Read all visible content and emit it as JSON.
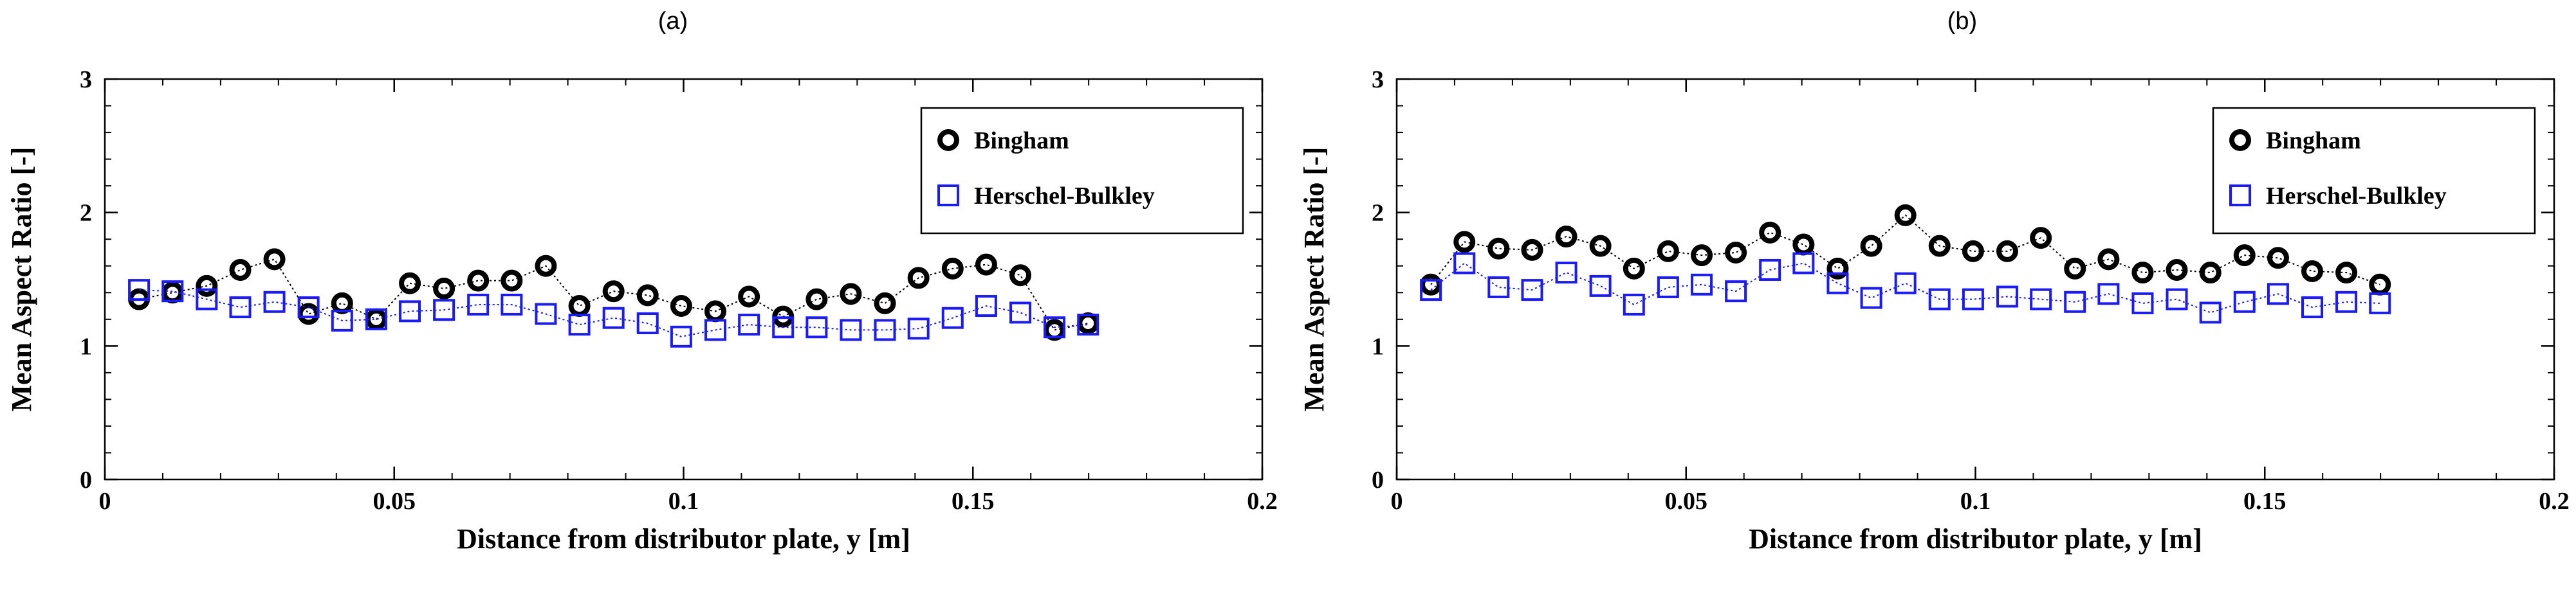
{
  "chart_data": [
    {
      "panel_label": "(a)",
      "type": "scatter",
      "xlabel": "Distance from distributor plate, y [m]",
      "ylabel": "Mean Aspect Ratio [-]",
      "xlim": [
        0,
        0.2
      ],
      "ylim": [
        0,
        3
      ],
      "x_ticks": [
        "0",
        "0.05",
        "0.1",
        "0.15",
        "0.2"
      ],
      "y_ticks": [
        "0",
        "1",
        "2",
        "3"
      ],
      "legend_position": "top-right",
      "x": [
        0.0059,
        0.0117,
        0.0176,
        0.0234,
        0.0293,
        0.0352,
        0.041,
        0.0469,
        0.0527,
        0.0586,
        0.0645,
        0.0703,
        0.0762,
        0.082,
        0.0879,
        0.0938,
        0.0996,
        0.1055,
        0.1113,
        0.1172,
        0.123,
        0.1289,
        0.1348,
        0.1406,
        0.1465,
        0.1523,
        0.1582,
        0.1641,
        0.1699
      ],
      "series": [
        {
          "name": "Bingham",
          "marker": "circle",
          "color": "#000000",
          "values": [
            1.35,
            1.4,
            1.45,
            1.57,
            1.65,
            1.24,
            1.32,
            1.2,
            1.47,
            1.43,
            1.49,
            1.49,
            1.6,
            1.3,
            1.41,
            1.38,
            1.3,
            1.26,
            1.37,
            1.22,
            1.35,
            1.39,
            1.32,
            1.51,
            1.58,
            1.61,
            1.53,
            1.12,
            1.17
          ]
        },
        {
          "name": "Herschel-Bulkley",
          "marker": "square",
          "color": "#1a1aff",
          "values": [
            1.42,
            1.41,
            1.35,
            1.29,
            1.33,
            1.29,
            1.19,
            1.2,
            1.26,
            1.27,
            1.31,
            1.31,
            1.24,
            1.16,
            1.21,
            1.17,
            1.07,
            1.12,
            1.16,
            1.14,
            1.14,
            1.12,
            1.12,
            1.13,
            1.21,
            1.3,
            1.25,
            1.14,
            1.16
          ]
        }
      ]
    },
    {
      "panel_label": "(b)",
      "type": "scatter",
      "xlabel": "Distance from distributor plate, y [m]",
      "ylabel": "Mean Aspect Ratio [-]",
      "xlim": [
        0,
        0.2
      ],
      "ylim": [
        0,
        3
      ],
      "x_ticks": [
        "0",
        "0.05",
        "0.1",
        "0.15",
        "0.2"
      ],
      "y_ticks": [
        "0",
        "1",
        "2",
        "3"
      ],
      "legend_position": "top-right",
      "x": [
        0.0059,
        0.0117,
        0.0176,
        0.0234,
        0.0293,
        0.0352,
        0.041,
        0.0469,
        0.0527,
        0.0586,
        0.0645,
        0.0703,
        0.0762,
        0.082,
        0.0879,
        0.0938,
        0.0996,
        0.1055,
        0.1113,
        0.1172,
        0.123,
        0.1289,
        0.1348,
        0.1406,
        0.1465,
        0.1523,
        0.1582,
        0.1641,
        0.1699
      ],
      "series": [
        {
          "name": "Bingham",
          "marker": "circle",
          "color": "#000000",
          "values": [
            1.46,
            1.78,
            1.73,
            1.72,
            1.82,
            1.75,
            1.58,
            1.71,
            1.68,
            1.7,
            1.85,
            1.76,
            1.58,
            1.75,
            1.98,
            1.75,
            1.71,
            1.71,
            1.81,
            1.58,
            1.65,
            1.55,
            1.57,
            1.55,
            1.68,
            1.66,
            1.56,
            1.55,
            1.46
          ]
        },
        {
          "name": "Herschel-Bulkley",
          "marker": "square",
          "color": "#1a1aff",
          "values": [
            1.42,
            1.62,
            1.44,
            1.42,
            1.55,
            1.45,
            1.31,
            1.44,
            1.46,
            1.41,
            1.57,
            1.62,
            1.47,
            1.36,
            1.47,
            1.35,
            1.35,
            1.37,
            1.35,
            1.33,
            1.39,
            1.32,
            1.35,
            1.25,
            1.33,
            1.39,
            1.29,
            1.33,
            1.32
          ]
        }
      ]
    }
  ]
}
